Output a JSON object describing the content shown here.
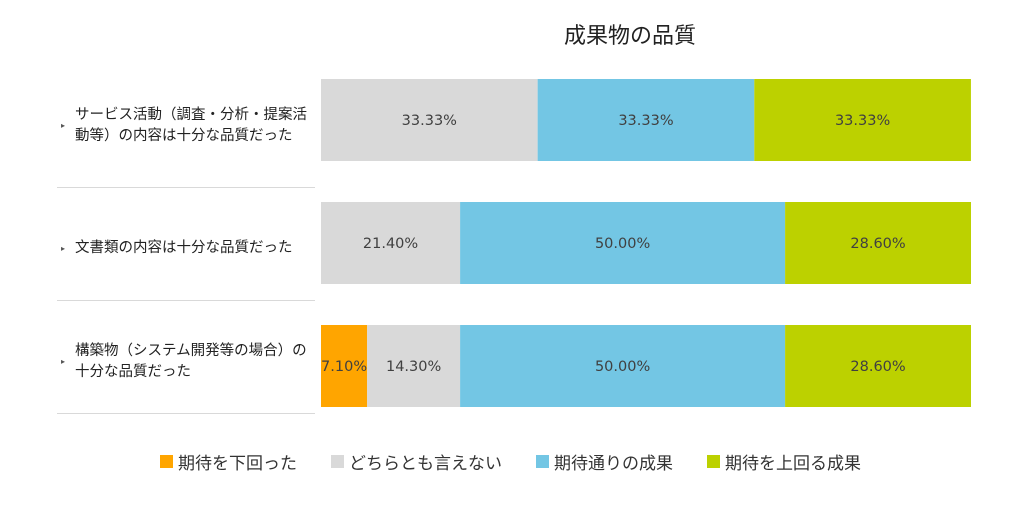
{
  "chart_data": {
    "type": "bar",
    "orientation": "horizontal",
    "stacked": true,
    "title": "成果物の品質",
    "categories": [
      "サービス活動（調査・分析・提案活動等）の内容は十分な品質だった",
      "文書類の内容は十分な品質だった",
      "構築物（システム開発等の場合）の十分な品質だった"
    ],
    "series": [
      {
        "name": "期待を下回った",
        "color": "#FFA500",
        "values": [
          0,
          0,
          7.1
        ],
        "labels": [
          "",
          "",
          "7.10%"
        ]
      },
      {
        "name": "どちらとも言えない",
        "color": "#D9D9D9",
        "values": [
          33.33,
          21.4,
          14.3
        ],
        "labels": [
          "33.33%",
          "21.40%",
          "14.30%"
        ]
      },
      {
        "name": "期待通りの成果",
        "color": "#73C6E4",
        "values": [
          33.33,
          50.0,
          50.0
        ],
        "labels": [
          "33.33%",
          "50.00%",
          "50.00%"
        ]
      },
      {
        "name": "期待を上回る成果",
        "color": "#BCD100",
        "values": [
          33.33,
          28.6,
          28.6
        ],
        "labels": [
          "33.33%",
          "28.60%",
          "28.60%"
        ]
      }
    ],
    "xlim": [
      0,
      100
    ],
    "grid": false,
    "legend_position": "bottom"
  }
}
